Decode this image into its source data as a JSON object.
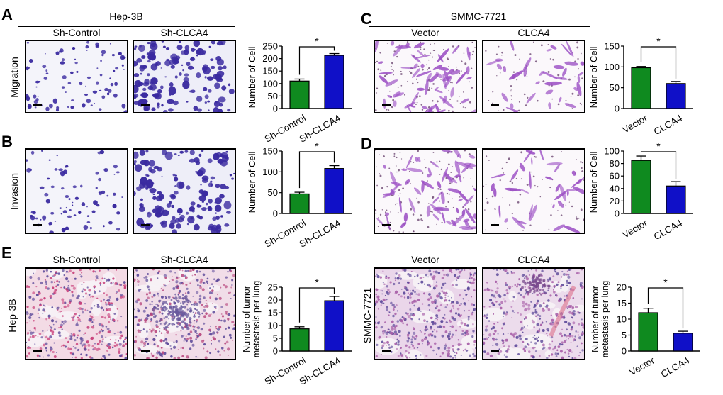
{
  "panels": {
    "A": {
      "letter": "A",
      "cell_line": "Hep-3B",
      "row_label": "Migration",
      "col1": "Sh-Control",
      "col2": "Sh-CLCA4"
    },
    "B": {
      "letter": "B",
      "row_label": "Invasion"
    },
    "C": {
      "letter": "C",
      "cell_line": "SMMC-7721",
      "col1": "Vector",
      "col2": "CLCA4"
    },
    "D": {
      "letter": "D"
    },
    "E": {
      "letter": "E",
      "left_col1": "Sh-Control",
      "left_col2": "Sh-CLCA4",
      "left_row_label": "Hep-3B",
      "right_col1": "Vector",
      "right_col2": "CLCA4",
      "right_row_label": "SMMC-7721"
    }
  },
  "colors": {
    "green": "#0f8a1f",
    "blue": "#1010c8",
    "crystal_violet": "#3a2aa0",
    "hematoxylin_bg": "#f6f3f8"
  },
  "chart_data": [
    {
      "id": "A-chart",
      "type": "bar",
      "categories": [
        "Sh-Control",
        "Sh-CLCA4"
      ],
      "values": [
        110,
        213
      ],
      "errors": [
        8,
        7
      ],
      "colors": [
        "#0f8a1f",
        "#1010c8"
      ],
      "ylabel": "Number of Cell",
      "ylim": [
        0,
        250
      ],
      "yticks": [
        0,
        50,
        100,
        150,
        200,
        250
      ],
      "significance": "*"
    },
    {
      "id": "B-chart",
      "type": "bar",
      "categories": [
        "Sh-Control",
        "Sh-CLCA4"
      ],
      "values": [
        47,
        108
      ],
      "errors": [
        4,
        7
      ],
      "colors": [
        "#0f8a1f",
        "#1010c8"
      ],
      "ylabel": "Number of Cell",
      "ylim": [
        0,
        150
      ],
      "yticks": [
        0,
        50,
        100,
        150
      ],
      "significance": "*"
    },
    {
      "id": "C-chart",
      "type": "bar",
      "categories": [
        "Vector",
        "CLCA4"
      ],
      "values": [
        98,
        60
      ],
      "errors": [
        3,
        5
      ],
      "colors": [
        "#0f8a1f",
        "#1010c8"
      ],
      "ylabel": "Number of Cell",
      "ylim": [
        0,
        150
      ],
      "yticks": [
        0,
        50,
        100,
        150
      ],
      "significance": "*"
    },
    {
      "id": "D-chart",
      "type": "bar",
      "categories": [
        "Vector",
        "CLCA4"
      ],
      "values": [
        85,
        44
      ],
      "errors": [
        7,
        7
      ],
      "colors": [
        "#0f8a1f",
        "#1010c8"
      ],
      "ylabel": "Number of Cell",
      "ylim": [
        0,
        100
      ],
      "yticks": [
        0,
        20,
        40,
        60,
        80,
        100
      ],
      "significance": "*"
    },
    {
      "id": "E-left-chart",
      "type": "bar",
      "categories": [
        "Sh-Control",
        "Sh-CLCA4"
      ],
      "values": [
        8.7,
        19.7
      ],
      "errors": [
        0.8,
        1.7
      ],
      "colors": [
        "#0f8a1f",
        "#1010c8"
      ],
      "ylabel": "Number of tumor metastasis per lung",
      "ylim": [
        0,
        25
      ],
      "yticks": [
        0,
        5,
        10,
        15,
        20,
        25
      ],
      "significance": "*"
    },
    {
      "id": "E-right-chart",
      "type": "bar",
      "categories": [
        "Vector",
        "CLCA4"
      ],
      "values": [
        12.0,
        5.6
      ],
      "errors": [
        1.4,
        0.6
      ],
      "colors": [
        "#0f8a1f",
        "#1010c8"
      ],
      "ylabel": "Number of tumor metastasis per lung",
      "ylim": [
        0,
        20
      ],
      "yticks": [
        0,
        5,
        10,
        15,
        20
      ],
      "significance": "*"
    }
  ]
}
